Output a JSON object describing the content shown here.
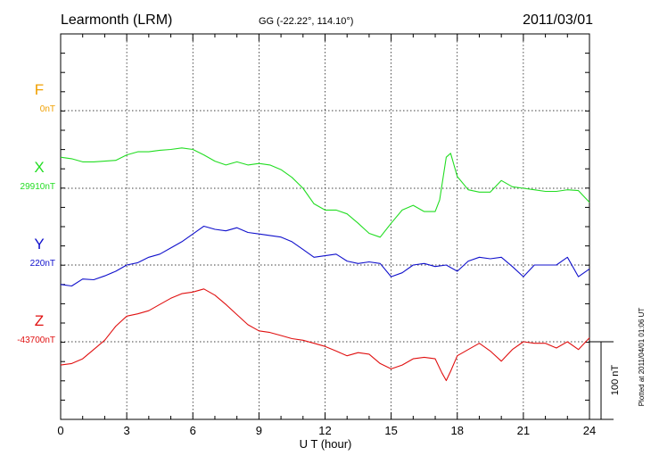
{
  "header": {
    "station": "Learmonth (LRM)",
    "coords": "GG (-22.22°, 114.10°)",
    "date": "2011/03/01"
  },
  "footer": {
    "plotted": "Plotted at 2011/04/01 01:06 UT"
  },
  "chart_data": {
    "type": "line",
    "xlabel": "U T (hour)",
    "xlim": [
      0,
      24
    ],
    "xticks": [
      "0",
      "3",
      "6",
      "9",
      "12",
      "15",
      "18",
      "21",
      "24"
    ],
    "grid": true,
    "scale_bar": {
      "label": "100 nT",
      "nT": 100
    },
    "series": [
      {
        "name": "F",
        "baseline": "0nT",
        "color": "#f0a000",
        "points": []
      },
      {
        "name": "X",
        "baseline": "29910nT",
        "color": "#22dd22",
        "points": [
          [
            0,
            40
          ],
          [
            0.5,
            38
          ],
          [
            1,
            34
          ],
          [
            1.5,
            34
          ],
          [
            2,
            35
          ],
          [
            2.5,
            36
          ],
          [
            3,
            43
          ],
          [
            3.5,
            47
          ],
          [
            4,
            47
          ],
          [
            4.5,
            49
          ],
          [
            5,
            50
          ],
          [
            5.5,
            52
          ],
          [
            6,
            50
          ],
          [
            6.5,
            43
          ],
          [
            7,
            35
          ],
          [
            7.5,
            30
          ],
          [
            8,
            34
          ],
          [
            8.5,
            30
          ],
          [
            9,
            32
          ],
          [
            9.5,
            30
          ],
          [
            10,
            24
          ],
          [
            10.5,
            14
          ],
          [
            11,
            0
          ],
          [
            11.5,
            -20
          ],
          [
            12,
            -28
          ],
          [
            12.5,
            -28
          ],
          [
            13,
            -33
          ],
          [
            13.5,
            -45
          ],
          [
            14,
            -58
          ],
          [
            14.5,
            -63
          ],
          [
            15,
            -45
          ],
          [
            15.5,
            -28
          ],
          [
            16,
            -22
          ],
          [
            16.5,
            -30
          ],
          [
            17,
            -30
          ],
          [
            17.2,
            -15
          ],
          [
            17.5,
            40
          ],
          [
            17.7,
            45
          ],
          [
            18,
            15
          ],
          [
            18.5,
            -2
          ],
          [
            19,
            -5
          ],
          [
            19.5,
            -5
          ],
          [
            20,
            10
          ],
          [
            20.5,
            2
          ],
          [
            21,
            0
          ],
          [
            21.5,
            -2
          ],
          [
            22,
            -4
          ],
          [
            22.5,
            -4
          ],
          [
            23,
            -2
          ],
          [
            23.5,
            -3
          ],
          [
            24,
            -18
          ]
        ]
      },
      {
        "name": "Y",
        "baseline": "220nT",
        "color": "#1010cc",
        "points": [
          [
            0,
            -25
          ],
          [
            0.5,
            -27
          ],
          [
            1,
            -18
          ],
          [
            1.5,
            -19
          ],
          [
            2,
            -14
          ],
          [
            2.5,
            -8
          ],
          [
            3,
            0
          ],
          [
            3.5,
            3
          ],
          [
            4,
            10
          ],
          [
            4.5,
            14
          ],
          [
            5,
            22
          ],
          [
            5.5,
            30
          ],
          [
            6,
            40
          ],
          [
            6.5,
            50
          ],
          [
            7,
            46
          ],
          [
            7.5,
            44
          ],
          [
            8,
            48
          ],
          [
            8.5,
            42
          ],
          [
            9,
            40
          ],
          [
            9.5,
            38
          ],
          [
            10,
            36
          ],
          [
            10.5,
            30
          ],
          [
            11,
            20
          ],
          [
            11.5,
            10
          ],
          [
            12,
            12
          ],
          [
            12.5,
            14
          ],
          [
            13,
            5
          ],
          [
            13.5,
            2
          ],
          [
            14,
            4
          ],
          [
            14.5,
            2
          ],
          [
            15,
            -15
          ],
          [
            15.5,
            -10
          ],
          [
            16,
            0
          ],
          [
            16.5,
            2
          ],
          [
            17,
            -2
          ],
          [
            17.5,
            0
          ],
          [
            18,
            -8
          ],
          [
            18.5,
            5
          ],
          [
            19,
            10
          ],
          [
            19.5,
            8
          ],
          [
            20,
            10
          ],
          [
            20.5,
            -2
          ],
          [
            21,
            -15
          ],
          [
            21.5,
            0
          ],
          [
            22,
            0
          ],
          [
            22.5,
            0
          ],
          [
            23,
            10
          ],
          [
            23.5,
            -15
          ],
          [
            24,
            -5
          ]
        ]
      },
      {
        "name": "Z",
        "baseline": "-43700nT",
        "color": "#e01010",
        "points": [
          [
            0,
            -30
          ],
          [
            0.5,
            -28
          ],
          [
            1,
            -22
          ],
          [
            1.5,
            -10
          ],
          [
            2,
            2
          ],
          [
            2.5,
            20
          ],
          [
            3,
            33
          ],
          [
            3.5,
            36
          ],
          [
            4,
            40
          ],
          [
            4.5,
            48
          ],
          [
            5,
            56
          ],
          [
            5.5,
            62
          ],
          [
            6,
            64
          ],
          [
            6.5,
            68
          ],
          [
            7,
            60
          ],
          [
            7.5,
            48
          ],
          [
            8,
            35
          ],
          [
            8.5,
            22
          ],
          [
            9,
            14
          ],
          [
            9.5,
            12
          ],
          [
            10,
            8
          ],
          [
            10.5,
            4
          ],
          [
            11,
            2
          ],
          [
            11.5,
            -2
          ],
          [
            12,
            -6
          ],
          [
            12.5,
            -12
          ],
          [
            13,
            -18
          ],
          [
            13.5,
            -14
          ],
          [
            14,
            -16
          ],
          [
            14.5,
            -28
          ],
          [
            15,
            -35
          ],
          [
            15.5,
            -30
          ],
          [
            16,
            -22
          ],
          [
            16.5,
            -20
          ],
          [
            17,
            -22
          ],
          [
            17.3,
            -40
          ],
          [
            17.5,
            -50
          ],
          [
            17.7,
            -38
          ],
          [
            18,
            -18
          ],
          [
            18.5,
            -10
          ],
          [
            19,
            -2
          ],
          [
            19.5,
            -12
          ],
          [
            20,
            -25
          ],
          [
            20.5,
            -10
          ],
          [
            21,
            0
          ],
          [
            21.5,
            -2
          ],
          [
            22,
            -2
          ],
          [
            22.5,
            -8
          ],
          [
            23,
            0
          ],
          [
            23.5,
            -10
          ],
          [
            24,
            5
          ]
        ]
      }
    ]
  }
}
